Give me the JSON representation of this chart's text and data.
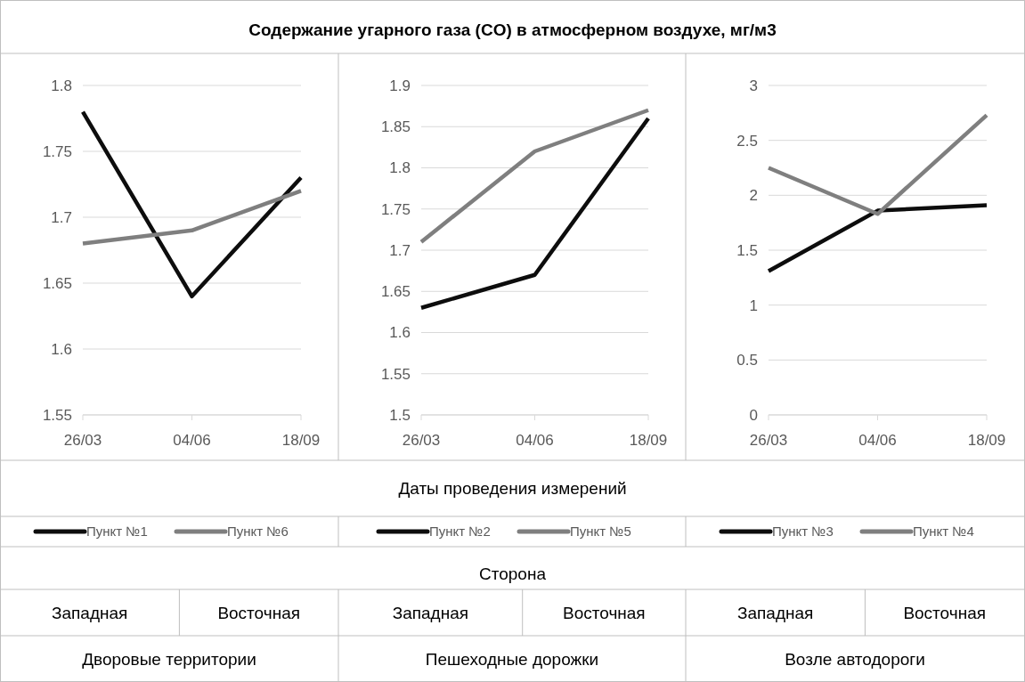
{
  "chart_data": [
    {
      "type": "other",
      "title": "Содержание угарного газа (CO) в атмосферном воздухе, мг/м3",
      "annotations": [
        "Даты проведения измерений",
        "Сторона"
      ]
    },
    {
      "type": "line",
      "categories": [
        "26/03",
        "04/06",
        "18/09"
      ],
      "ylim": [
        1.55,
        1.8
      ],
      "yticks": [
        1.55,
        1.6,
        1.65,
        1.7,
        1.75,
        1.8
      ],
      "grid": "y",
      "legend": "bottom",
      "line_style": "solid",
      "marker": "none",
      "series": [
        {
          "name": "Пункт №1",
          "color": "#0d0d0d",
          "values": [
            1.78,
            1.64,
            1.73
          ]
        },
        {
          "name": "Пункт №6",
          "color": "#7f7f7f",
          "values": [
            1.68,
            1.69,
            1.72
          ]
        }
      ],
      "annotations": [
        "Западная",
        "Восточная",
        "Дворовые территории"
      ]
    },
    {
      "type": "line",
      "categories": [
        "26/03",
        "04/06",
        "18/09"
      ],
      "ylim": [
        1.5,
        1.9
      ],
      "yticks": [
        1.5,
        1.55,
        1.6,
        1.65,
        1.7,
        1.75,
        1.8,
        1.85,
        1.9
      ],
      "grid": "y",
      "legend": "bottom",
      "line_style": "solid",
      "marker": "none",
      "series": [
        {
          "name": "Пункт №2",
          "color": "#0d0d0d",
          "values": [
            1.63,
            1.67,
            1.86
          ]
        },
        {
          "name": "Пункт №5",
          "color": "#7f7f7f",
          "values": [
            1.71,
            1.82,
            1.87
          ]
        }
      ],
      "annotations": [
        "Западная",
        "Восточная",
        "Пешеходные дорожки"
      ]
    },
    {
      "type": "line",
      "categories": [
        "26/03",
        "04/06",
        "18/09"
      ],
      "ylim": [
        0,
        3
      ],
      "yticks": [
        0,
        0.5,
        1,
        1.5,
        2,
        2.5,
        3
      ],
      "grid": "y",
      "legend": "bottom",
      "line_style": "solid",
      "marker": "none",
      "series": [
        {
          "name": "Пункт №3",
          "color": "#0d0d0d",
          "values": [
            1.31,
            1.86,
            1.91
          ]
        },
        {
          "name": "Пункт №4",
          "color": "#7f7f7f",
          "values": [
            2.25,
            1.83,
            2.73
          ]
        }
      ],
      "annotations": [
        "Западная",
        "Восточная",
        "Возле автодороги"
      ]
    }
  ]
}
